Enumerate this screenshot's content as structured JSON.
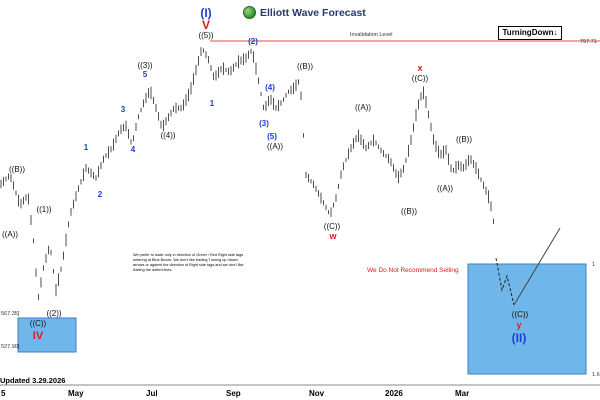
{
  "brand": {
    "logo_text": "Elliott Wave Forecast",
    "logo_icon": "globe-icon"
  },
  "trend": {
    "label": "TurningDown",
    "arrow_icon": "arrow-down-icon"
  },
  "invalidation": {
    "label": "Invalidation Level",
    "value": 797.71
  },
  "right_axis": {
    "labels": [
      "797.71",
      "1",
      "1.6"
    ]
  },
  "left_axis": {
    "labels": [
      "567.35]",
      "527.90]"
    ]
  },
  "x_axis": {
    "labels": [
      "5",
      "May",
      "Jul",
      "Sep",
      "Nov",
      "2026",
      "Mar"
    ]
  },
  "note_text": "We prefer to trade only in direction of Green / Red Right side tags entering at Blue Boxes. We don't like trading Turning up /down arrows or against the direction of Right side tags and we don't like trading the dotted lines.",
  "not_recommend": "We Do Not Recommend Selling",
  "updated": "Updated 3.29.2026",
  "colors": {
    "wave_blue": "#1a3fd6",
    "wave_black": "#111111",
    "wave_red": "#e01a1a",
    "blue_box": "#6fb7ea",
    "invalidation": "#e34b4b"
  },
  "chart_data": {
    "type": "bar",
    "title": "",
    "x_axis_labels": [
      "5",
      "May",
      "Jul",
      "Sep",
      "Nov",
      "2026",
      "Mar"
    ],
    "invalidation_level": 797.71,
    "wave_labels": [
      {
        "text": "((B))",
        "color": "black"
      },
      {
        "text": "((A))",
        "color": "black"
      },
      {
        "text": "((1))",
        "color": "black"
      },
      {
        "text": "((2))",
        "color": "black"
      },
      {
        "text": "((C))",
        "color": "black"
      },
      {
        "text": "IV",
        "color": "red"
      },
      {
        "text": "1",
        "color": "blue"
      },
      {
        "text": "2",
        "color": "blue"
      },
      {
        "text": "3",
        "color": "blue"
      },
      {
        "text": "4",
        "color": "blue"
      },
      {
        "text": "5",
        "color": "blue"
      },
      {
        "text": "((3))",
        "color": "black"
      },
      {
        "text": "((4))",
        "color": "black"
      },
      {
        "text": "((5))",
        "color": "black"
      },
      {
        "text": "(I)",
        "color": "blue"
      },
      {
        "text": "V",
        "color": "red"
      },
      {
        "text": "1",
        "color": "blue"
      },
      {
        "text": "(2)",
        "color": "blue"
      },
      {
        "text": "(4)",
        "color": "blue"
      },
      {
        "text": "(3)",
        "color": "blue"
      },
      {
        "text": "(5)",
        "color": "blue"
      },
      {
        "text": "((A))",
        "color": "black"
      },
      {
        "text": "((B))",
        "color": "black"
      },
      {
        "text": "((C))",
        "color": "black"
      },
      {
        "text": "w",
        "color": "red"
      },
      {
        "text": "((A))",
        "color": "black"
      },
      {
        "text": "((B))",
        "color": "black"
      },
      {
        "text": "x",
        "color": "red"
      },
      {
        "text": "((C))",
        "color": "black"
      },
      {
        "text": "((B))",
        "color": "black"
      },
      {
        "text": "((A))",
        "color": "black"
      },
      {
        "text": "((C))",
        "color": "black"
      },
      {
        "text": "y",
        "color": "red"
      },
      {
        "text": "(II)",
        "color": "blue"
      }
    ]
  }
}
